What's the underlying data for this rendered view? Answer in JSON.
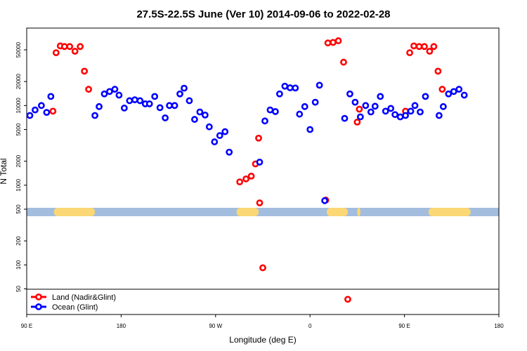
{
  "chart_data": {
    "type": "scatter",
    "title": "27.5S-22.5S June (Ver 10)   2014-09-06 to 2022-02-28",
    "xlabel": "Longitude (deg E)",
    "ylabel": "N Total",
    "x_ticks": [
      {
        "value": 90,
        "label": "90 E"
      },
      {
        "value": 180,
        "label": "180"
      },
      {
        "value": 270,
        "label": "90 W"
      },
      {
        "value": 360,
        "label": "0"
      },
      {
        "value": 450,
        "label": "90 E"
      },
      {
        "value": 540,
        "label": "180"
      }
    ],
    "xlim": [
      90,
      540
    ],
    "y_scale": "log",
    "ylim": [
      30,
      80000
    ],
    "y_ticks": [
      50,
      100,
      200,
      500,
      1000,
      2000,
      5000,
      10000,
      20000,
      50000
    ],
    "grid": false,
    "legend_position": "bottom-left",
    "land_strip_ranges": [
      [
        116,
        155
      ],
      [
        290,
        311
      ],
      [
        376,
        396
      ],
      [
        405,
        408
      ],
      [
        473,
        513
      ]
    ],
    "colors": {
      "land": "#ff0000",
      "ocean": "#0000ff",
      "strip_ocean": "#a3bddf",
      "strip_land": "#fbd775"
    },
    "series": [
      {
        "name": "Land (Nadir&Glint)",
        "color": "#ff0000",
        "points": [
          [
            115,
            8500
          ],
          [
            118,
            46000
          ],
          [
            122,
            56000
          ],
          [
            126,
            55000
          ],
          [
            131,
            55000
          ],
          [
            136,
            48000
          ],
          [
            141,
            55000
          ],
          [
            145,
            27000
          ],
          [
            149,
            16000
          ],
          [
            293,
            1100
          ],
          [
            299,
            1200
          ],
          [
            304,
            1300
          ],
          [
            308,
            1850
          ],
          [
            311,
            3900
          ],
          [
            312,
            600
          ],
          [
            315,
            92
          ],
          [
            375,
            650
          ],
          [
            377,
            61000
          ],
          [
            382,
            62000
          ],
          [
            387,
            65000
          ],
          [
            392,
            35000
          ],
          [
            396,
            37
          ],
          [
            405,
            6200
          ],
          [
            407,
            9000
          ],
          [
            451,
            8500
          ],
          [
            455,
            46000
          ],
          [
            459,
            56000
          ],
          [
            464,
            55000
          ],
          [
            469,
            55000
          ],
          [
            474,
            48000
          ],
          [
            478,
            55000
          ],
          [
            482,
            27000
          ],
          [
            486,
            16000
          ]
        ]
      },
      {
        "name": "Ocean (Glint)",
        "color": "#0000ff",
        "points": [
          [
            93,
            7500
          ],
          [
            98,
            8800
          ],
          [
            104,
            10000
          ],
          [
            109,
            8200
          ],
          [
            113,
            13000
          ],
          [
            155,
            7500
          ],
          [
            159,
            9700
          ],
          [
            164,
            14000
          ],
          [
            169,
            15000
          ],
          [
            174,
            16000
          ],
          [
            178,
            13500
          ],
          [
            183,
            9300
          ],
          [
            188,
            11500
          ],
          [
            193,
            11800
          ],
          [
            198,
            11500
          ],
          [
            203,
            10500
          ],
          [
            207,
            10500
          ],
          [
            212,
            13000
          ],
          [
            217,
            9400
          ],
          [
            222,
            7000
          ],
          [
            226,
            10000
          ],
          [
            231,
            10000
          ],
          [
            236,
            14000
          ],
          [
            240,
            16500
          ],
          [
            245,
            11500
          ],
          [
            250,
            6700
          ],
          [
            255,
            8300
          ],
          [
            260,
            7600
          ],
          [
            264,
            5400
          ],
          [
            269,
            3500
          ],
          [
            274,
            4200
          ],
          [
            279,
            4700
          ],
          [
            283,
            2600
          ],
          [
            312,
            1950
          ],
          [
            317,
            6400
          ],
          [
            322,
            8800
          ],
          [
            327,
            8400
          ],
          [
            331,
            14000
          ],
          [
            336,
            17500
          ],
          [
            341,
            16700
          ],
          [
            346,
            16600
          ],
          [
            350,
            7800
          ],
          [
            355,
            9700
          ],
          [
            360,
            5000
          ],
          [
            365,
            11000
          ],
          [
            369,
            18000
          ],
          [
            374,
            640
          ],
          [
            393,
            6900
          ],
          [
            398,
            14000
          ],
          [
            403,
            11000
          ],
          [
            408,
            7200
          ],
          [
            413,
            10000
          ],
          [
            418,
            8300
          ],
          [
            422,
            9800
          ],
          [
            427,
            13000
          ],
          [
            432,
            8500
          ],
          [
            437,
            9200
          ],
          [
            441,
            7700
          ],
          [
            446,
            7200
          ],
          [
            451,
            7500
          ],
          [
            456,
            8500
          ],
          [
            460,
            10000
          ],
          [
            465,
            8300
          ],
          [
            470,
            13000
          ],
          [
            483,
            7500
          ],
          [
            487,
            9700
          ],
          [
            492,
            14000
          ],
          [
            497,
            15000
          ],
          [
            502,
            16000
          ],
          [
            507,
            13500
          ]
        ]
      }
    ]
  }
}
